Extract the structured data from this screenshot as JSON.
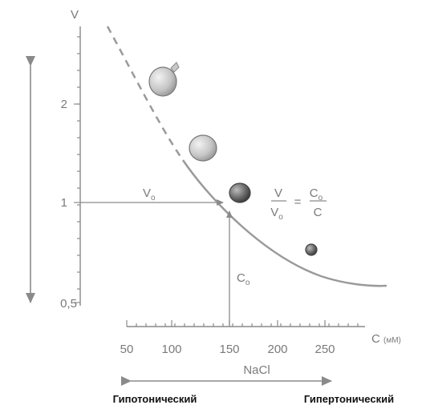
{
  "axes": {
    "y_label": "V",
    "y_ticks": [
      "2",
      "1",
      "0,5"
    ],
    "x_label": "C",
    "x_unit": "(мМ)",
    "x_ticks": [
      "50",
      "100",
      "150",
      "200",
      "250"
    ]
  },
  "annotations": {
    "v0_label": "V",
    "v0_sub": "o",
    "c0_label": "C",
    "c0_sub": "o",
    "eq_num_left": "V",
    "eq_den_left": "V",
    "eq_den_left_sub": "o",
    "eq_equals": "=",
    "eq_num_right": "C",
    "eq_num_right_sub": "o",
    "eq_den_right": "C"
  },
  "bottom": {
    "nacl_label": "NaCl",
    "hypotonic": "Гипотонический",
    "hypertonic": "Гипертонический"
  },
  "colors": {
    "axis": "#8a8a8a",
    "curve": "#9a9a9a",
    "cell_light": "#c8c8c8",
    "cell_dark": "#555555",
    "caption": "#111111"
  },
  "chart_data": {
    "type": "line",
    "x": [
      80,
      100,
      120,
      150,
      200,
      250,
      300
    ],
    "y": [
      1.88,
      1.5,
      1.25,
      1.0,
      0.75,
      0.6,
      0.5
    ],
    "xlabel": "C (мМ)",
    "ylabel": "V",
    "xlim": [
      50,
      300
    ],
    "ylim": [
      0.5,
      2.5
    ],
    "y_scale": "log",
    "grid": false,
    "cells": [
      {
        "c": 85,
        "v": 2.1
      },
      {
        "c": 125,
        "v": 1.55
      },
      {
        "c": 160,
        "v": 1.08
      },
      {
        "c": 235,
        "v": 0.76
      }
    ]
  }
}
